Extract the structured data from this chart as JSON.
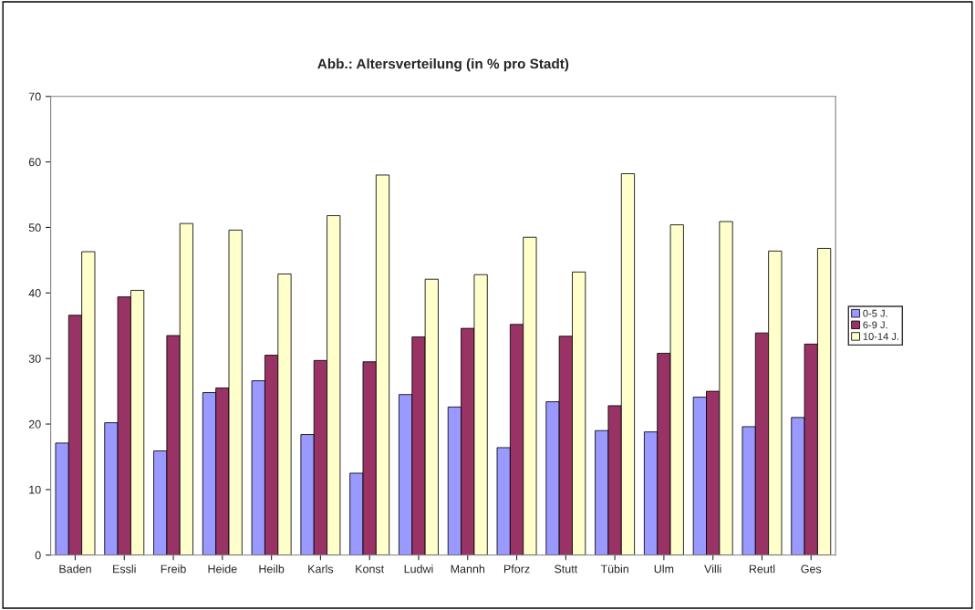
{
  "chart_data": {
    "type": "bar",
    "title": "Abb.: Altersverteilung (in % pro Stadt)",
    "categories": [
      "Baden",
      "Essli",
      "Freib",
      "Heide",
      "Heilb",
      "Karls",
      "Konst",
      "Ludwi",
      "Mannh",
      "Pforz",
      "Stutt",
      "Tübin",
      "Ulm",
      "Villi",
      "Reutl",
      "Ges"
    ],
    "series": [
      {
        "name": "0-5 J.",
        "color": "#9999ff",
        "values": [
          17.1,
          20.2,
          15.9,
          24.8,
          26.6,
          18.4,
          12.5,
          24.5,
          22.6,
          16.4,
          23.4,
          19.0,
          18.8,
          24.1,
          19.6,
          21.0
        ]
      },
      {
        "name": "6-9 J.",
        "color": "#993366",
        "values": [
          36.6,
          39.4,
          33.5,
          25.5,
          30.5,
          29.7,
          29.5,
          33.3,
          34.6,
          35.2,
          33.4,
          22.8,
          30.8,
          25.0,
          33.9,
          32.2
        ]
      },
      {
        "name": "10-14 J.",
        "color": "#ffffcc",
        "values": [
          46.3,
          40.4,
          50.6,
          49.6,
          42.9,
          51.8,
          58.0,
          42.1,
          42.8,
          48.5,
          43.2,
          58.2,
          50.4,
          50.9,
          46.4,
          46.8
        ]
      }
    ],
    "ylim": [
      0,
      70
    ],
    "yticks": [
      0,
      10,
      20,
      30,
      40,
      50,
      60,
      70
    ],
    "grid": false,
    "legend": "right"
  }
}
